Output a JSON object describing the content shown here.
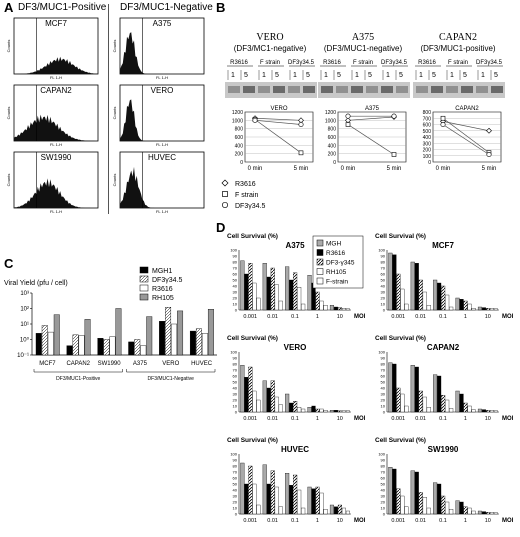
{
  "panelA": {
    "label": "A",
    "pos_title": "DF3/MUC1-Positive",
    "neg_title": "DF3/MUC1-Negative",
    "cells": [
      "MCF7",
      "CAPAN2",
      "SW1990",
      "A375",
      "VERO",
      "HUVEC"
    ]
  },
  "panelB": {
    "label": "B",
    "groups": [
      {
        "name": "VERO",
        "sub": "(DF3/MC1-negative)"
      },
      {
        "name": "A375",
        "sub": "(DF3/MUC1-negative)"
      },
      {
        "name": "CAPAN2",
        "sub": "(DF3/MUC1-positive)"
      }
    ],
    "lanes": [
      "R3616",
      "F strain",
      "DF3γ34.5"
    ],
    "times": [
      "1",
      "5"
    ],
    "legend": [
      "R3616",
      "F strain",
      "DF3γ34.5"
    ],
    "xticks": [
      "0 min",
      "5 min"
    ],
    "plots": [
      {
        "name": "VERO",
        "yticks": [
          "0",
          "200",
          "400",
          "600",
          "800",
          "1000",
          "1200"
        ]
      },
      {
        "name": "A375",
        "yticks": [
          "0",
          "200",
          "400",
          "600",
          "800",
          "1000",
          "1200"
        ]
      },
      {
        "name": "CAPAN2",
        "yticks": [
          "0",
          "100",
          "200",
          "300",
          "400",
          "500",
          "600",
          "700",
          "800"
        ]
      }
    ]
  },
  "panelC": {
    "label": "C",
    "ylabel": "Viral Yield (pfu / cell)",
    "yticks": [
      "10⁻¹",
      "10⁰",
      "10¹",
      "10²",
      "10³"
    ],
    "groups": [
      "DF3/MUC1-Positive",
      "DF3/MUC1-Negative"
    ]
  },
  "panelD": {
    "label": "D",
    "ylabel": "Cell Survival (%)",
    "xlabel": "MOI",
    "xticks": [
      "0.001",
      "0.01",
      "0.1",
      "1",
      "10"
    ],
    "yticks": [
      "0",
      "10",
      "20",
      "30",
      "40",
      "50",
      "60",
      "70",
      "80",
      "90",
      "100"
    ],
    "legend": [
      "MGH",
      "R3616",
      "DF3-γ345",
      "RH105",
      "F-strain"
    ],
    "plots": [
      "A375",
      "MCF7",
      "VERO",
      "CAPAN2",
      "HUVEC",
      "SW1990"
    ]
  },
  "chart_data": [
    {
      "type": "line",
      "title": "VERO",
      "x": [
        "0 min",
        "5 min"
      ],
      "series": [
        {
          "name": "R3616",
          "values": [
            1050,
            1000
          ]
        },
        {
          "name": "F strain",
          "values": [
            1020,
            220
          ]
        },
        {
          "name": "DF3γ34.5",
          "values": [
            1000,
            900
          ]
        }
      ]
    },
    {
      "type": "line",
      "title": "A375",
      "x": [
        "0 min",
        "5 min"
      ],
      "series": [
        {
          "name": "R3616",
          "values": [
            1000,
            1080
          ]
        },
        {
          "name": "F strain",
          "values": [
            900,
            180
          ]
        },
        {
          "name": "DF3γ34.5",
          "values": [
            1100,
            1100
          ]
        }
      ]
    },
    {
      "type": "line",
      "title": "CAPAN2",
      "x": [
        "0 min",
        "5 min"
      ],
      "series": [
        {
          "name": "R3616",
          "values": [
            650,
            500
          ]
        },
        {
          "name": "F strain",
          "values": [
            700,
            150
          ]
        },
        {
          "name": "DF3γ34.5",
          "values": [
            600,
            120
          ]
        }
      ]
    },
    {
      "type": "bar",
      "ylabel": "Viral Yield (pfu / cell)",
      "log_scale": true,
      "ylim": [
        0.1,
        1000
      ],
      "categories": [
        "MCF7",
        "CAPAN2",
        "SW1990",
        "A375",
        "VERO",
        "HUVEC"
      ],
      "series": [
        {
          "name": "MGH1",
          "values": [
            2.5,
            0.4,
            1.2,
            0.7,
            15,
            3.5
          ]
        },
        {
          "name": "DF3γ34.5",
          "values": [
            8,
            2,
            1,
            1,
            120,
            5
          ]
        },
        {
          "name": "R3616",
          "values": [
            3,
            1.8,
            1.5,
            0.4,
            10,
            2.5
          ]
        },
        {
          "name": "RH105",
          "values": [
            40,
            20,
            100,
            30,
            70,
            90
          ]
        }
      ]
    },
    {
      "type": "bar",
      "title": "A375",
      "ylabel": "Cell Survival (%)",
      "xlabel": "MOI",
      "ylim": [
        0,
        100
      ],
      "categories": [
        "0.001",
        "0.01",
        "0.1",
        "1",
        "10"
      ],
      "series": [
        {
          "name": "MGH",
          "values": [
            82,
            78,
            72,
            58,
            8
          ]
        },
        {
          "name": "R3616",
          "values": [
            60,
            55,
            50,
            45,
            5
          ]
        },
        {
          "name": "DF3-γ345",
          "values": [
            78,
            70,
            62,
            30,
            4
          ]
        },
        {
          "name": "RH105",
          "values": [
            45,
            42,
            38,
            15,
            3
          ]
        },
        {
          "name": "F-strain",
          "values": [
            20,
            15,
            10,
            8,
            2
          ]
        }
      ]
    },
    {
      "type": "bar",
      "title": "MCF7",
      "ylabel": "Cell Survival (%)",
      "xlabel": "MOI",
      "ylim": [
        0,
        100
      ],
      "categories": [
        "0.001",
        "0.01",
        "0.1",
        "1",
        "10"
      ],
      "series": [
        {
          "name": "MGH",
          "values": [
            95,
            80,
            50,
            20,
            5
          ]
        },
        {
          "name": "R3616",
          "values": [
            92,
            78,
            45,
            18,
            4
          ]
        },
        {
          "name": "DF3-γ345",
          "values": [
            60,
            50,
            40,
            15,
            3
          ]
        },
        {
          "name": "RH105",
          "values": [
            35,
            30,
            25,
            10,
            3
          ]
        },
        {
          "name": "F-strain",
          "values": [
            10,
            8,
            5,
            3,
            2
          ]
        }
      ]
    },
    {
      "type": "bar",
      "title": "VERO",
      "ylabel": "Cell Survival (%)",
      "xlabel": "MOI",
      "ylim": [
        0,
        100
      ],
      "categories": [
        "0.001",
        "0.01",
        "0.1",
        "1",
        "10"
      ],
      "series": [
        {
          "name": "MGH",
          "values": [
            78,
            52,
            30,
            8,
            3
          ]
        },
        {
          "name": "R3616",
          "values": [
            58,
            40,
            15,
            10,
            3
          ]
        },
        {
          "name": "DF3-γ345",
          "values": [
            75,
            52,
            18,
            5,
            2
          ]
        },
        {
          "name": "RH105",
          "values": [
            35,
            25,
            8,
            5,
            2
          ]
        },
        {
          "name": "F-strain",
          "values": [
            20,
            12,
            5,
            3,
            2
          ]
        }
      ]
    },
    {
      "type": "bar",
      "title": "CAPAN2",
      "ylabel": "Cell Survival (%)",
      "xlabel": "MOI",
      "ylim": [
        0,
        100
      ],
      "categories": [
        "0.001",
        "0.01",
        "0.1",
        "1",
        "10"
      ],
      "series": [
        {
          "name": "MGH",
          "values": [
            82,
            78,
            62,
            35,
            5
          ]
        },
        {
          "name": "R3616",
          "values": [
            80,
            75,
            60,
            30,
            4
          ]
        },
        {
          "name": "DF3-γ345",
          "values": [
            40,
            35,
            28,
            15,
            3
          ]
        },
        {
          "name": "RH105",
          "values": [
            30,
            25,
            20,
            10,
            3
          ]
        },
        {
          "name": "F-strain",
          "values": [
            10,
            8,
            6,
            4,
            2
          ]
        }
      ]
    },
    {
      "type": "bar",
      "title": "HUVEC",
      "ylabel": "Cell Survival (%)",
      "xlabel": "MOI",
      "ylim": [
        0,
        100
      ],
      "categories": [
        "0.001",
        "0.01",
        "0.1",
        "1",
        "10"
      ],
      "series": [
        {
          "name": "MGH",
          "values": [
            85,
            82,
            68,
            45,
            15
          ]
        },
        {
          "name": "R3616",
          "values": [
            50,
            50,
            48,
            42,
            12
          ]
        },
        {
          "name": "DF3-γ345",
          "values": [
            80,
            72,
            65,
            45,
            15
          ]
        },
        {
          "name": "RH105",
          "values": [
            50,
            45,
            40,
            35,
            10
          ]
        },
        {
          "name": "F-strain",
          "values": [
            15,
            12,
            10,
            8,
            5
          ]
        }
      ]
    },
    {
      "type": "bar",
      "title": "SW1990",
      "ylabel": "Cell Survival (%)",
      "xlabel": "MOI",
      "ylim": [
        0,
        100
      ],
      "categories": [
        "0.001",
        "0.01",
        "0.1",
        "1",
        "10"
      ],
      "series": [
        {
          "name": "MGH",
          "values": [
            78,
            72,
            52,
            22,
            5
          ]
        },
        {
          "name": "R3616",
          "values": [
            75,
            70,
            50,
            20,
            4
          ]
        },
        {
          "name": "DF3-γ345",
          "values": [
            42,
            36,
            30,
            12,
            3
          ]
        },
        {
          "name": "RH105",
          "values": [
            30,
            28,
            20,
            10,
            3
          ]
        },
        {
          "name": "F-strain",
          "values": [
            12,
            10,
            8,
            5,
            2
          ]
        }
      ]
    }
  ]
}
